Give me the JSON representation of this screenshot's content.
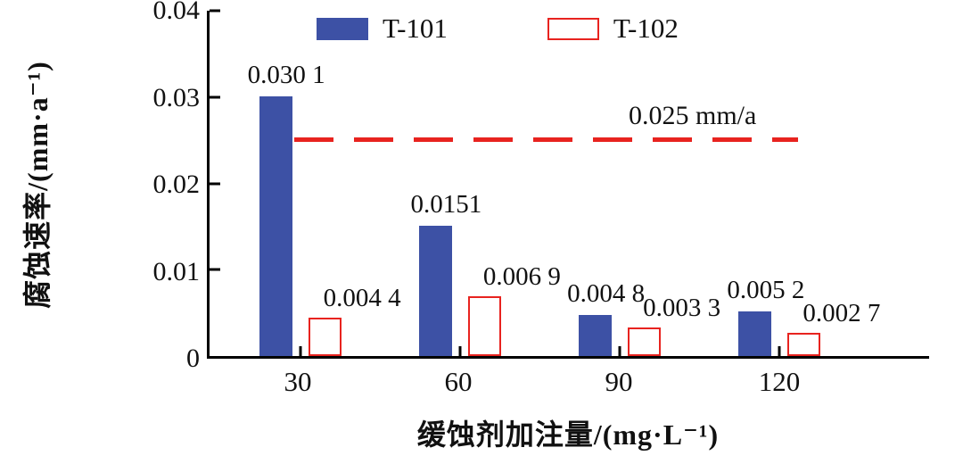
{
  "chart_data": {
    "type": "bar",
    "title": "",
    "xlabel": "缓蚀剂加注量/(mg·L⁻¹)",
    "ylabel": "腐蚀速率/(mm·a⁻¹)",
    "categories": [
      "30",
      "60",
      "90",
      "120"
    ],
    "series": [
      {
        "name": "T-101",
        "color": "#3d51a5",
        "values": [
          0.0301,
          0.0151,
          0.0048,
          0.0052
        ],
        "labels": [
          "0.030 1",
          "0.0151",
          "0.004 8",
          "0.005 2"
        ]
      },
      {
        "name": "T-102",
        "color": "#ffffff",
        "border_color": "#e8231f",
        "values": [
          0.0044,
          0.0069,
          0.0033,
          0.0027
        ],
        "labels": [
          "0.004 4",
          "0.006 9",
          "0.003 3",
          "0.002 7"
        ]
      }
    ],
    "ylim": [
      0,
      0.04
    ],
    "yticks": [
      "0",
      "0.01",
      "0.02",
      "0.03",
      "0.04"
    ],
    "threshold": {
      "value": 0.025,
      "label": "0.025 mm/a",
      "color": "#e8231f"
    },
    "legend_position": "top",
    "grid": false
  }
}
